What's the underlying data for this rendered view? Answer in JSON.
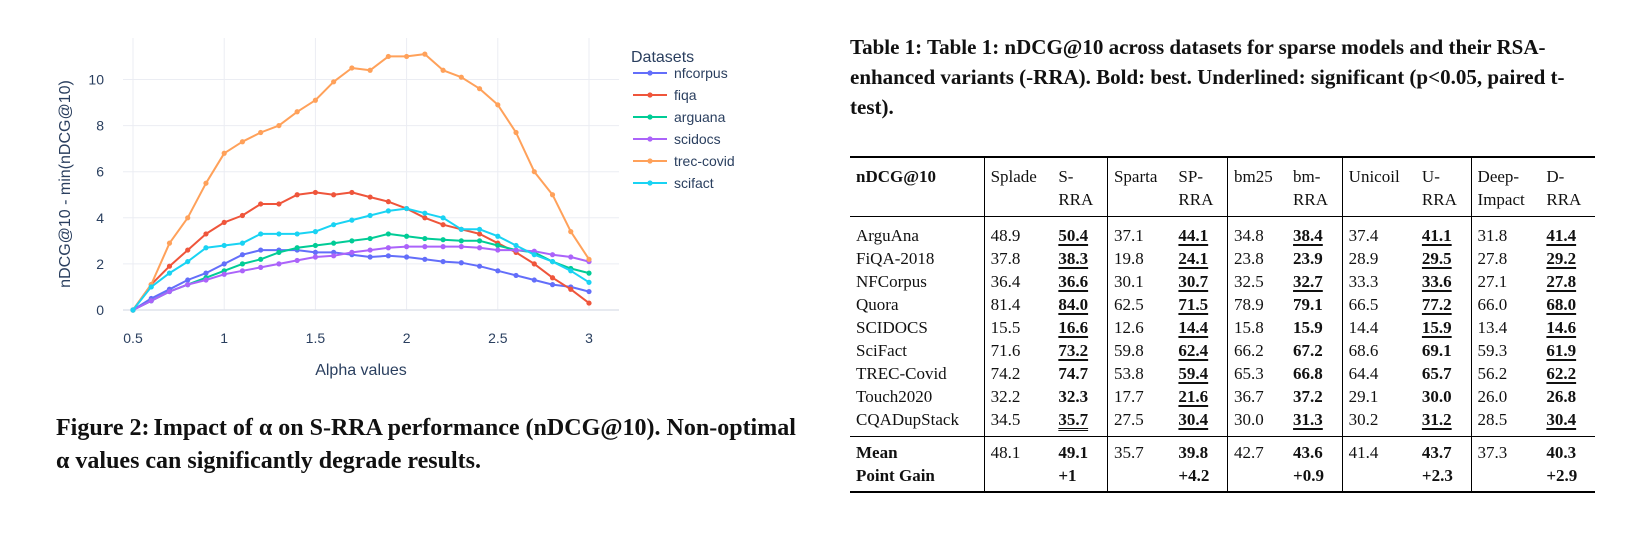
{
  "figure": {
    "caption_label": "Figure 2:",
    "caption_text": "Impact of α on S-RRA performance (nDCG@10). Non-optimal α values can significantly degrade results."
  },
  "chart_data": {
    "type": "line",
    "xlabel": "Alpha values",
    "ylabel": "nDCG@10 - min(nDCG@10)",
    "xlim": [
      0.5,
      3.0
    ],
    "ylim": [
      0,
      11.8
    ],
    "xticks": [
      0.5,
      1,
      1.5,
      2,
      2.5,
      3
    ],
    "xtick_labels": [
      "0.5",
      "1",
      "1.5",
      "2",
      "2.5",
      "3"
    ],
    "yticks": [
      0,
      2,
      4,
      6,
      8,
      10
    ],
    "ytick_labels": [
      "0",
      "2",
      "4",
      "6",
      "8",
      "10"
    ],
    "grid": true,
    "legend_title": "Datasets",
    "legend_position": "top-right, outside plot",
    "x": [
      0.5,
      0.6,
      0.7,
      0.8,
      0.9,
      1.0,
      1.1,
      1.2,
      1.3,
      1.4,
      1.5,
      1.6,
      1.7,
      1.8,
      1.9,
      2.0,
      2.1,
      2.2,
      2.3,
      2.4,
      2.5,
      2.6,
      2.7,
      2.8,
      2.9,
      3.0
    ],
    "series": [
      {
        "name": "nfcorpus",
        "color": "#636efa",
        "values": [
          0,
          0.5,
          0.9,
          1.3,
          1.6,
          2.0,
          2.4,
          2.6,
          2.6,
          2.6,
          2.5,
          2.5,
          2.4,
          2.3,
          2.35,
          2.3,
          2.2,
          2.1,
          2.05,
          1.9,
          1.7,
          1.5,
          1.3,
          1.1,
          1.0,
          0.8
        ]
      },
      {
        "name": "fiqa",
        "color": "#ef553b",
        "values": [
          0,
          1.1,
          1.9,
          2.6,
          3.3,
          3.8,
          4.1,
          4.6,
          4.6,
          5.0,
          5.1,
          5.0,
          5.1,
          4.9,
          4.7,
          4.4,
          4.0,
          3.7,
          3.5,
          3.3,
          2.9,
          2.5,
          2.0,
          1.4,
          0.9,
          0.3
        ]
      },
      {
        "name": "arguana",
        "color": "#00cc96",
        "values": [
          0,
          0.4,
          0.8,
          1.1,
          1.4,
          1.7,
          2.0,
          2.2,
          2.5,
          2.7,
          2.8,
          2.9,
          3.0,
          3.1,
          3.3,
          3.2,
          3.1,
          3.05,
          3.0,
          3.0,
          2.8,
          2.6,
          2.5,
          2.1,
          1.8,
          1.6
        ]
      },
      {
        "name": "scidocs",
        "color": "#ab63fa",
        "values": [
          0,
          0.4,
          0.8,
          1.1,
          1.3,
          1.55,
          1.7,
          1.85,
          2.0,
          2.15,
          2.3,
          2.35,
          2.5,
          2.6,
          2.7,
          2.75,
          2.75,
          2.75,
          2.75,
          2.7,
          2.6,
          2.6,
          2.55,
          2.4,
          2.3,
          2.1
        ]
      },
      {
        "name": "trec-covid",
        "color": "#ffa15a",
        "values": [
          0,
          1.1,
          2.9,
          4.0,
          5.5,
          6.8,
          7.3,
          7.7,
          8.0,
          8.6,
          9.1,
          9.9,
          10.5,
          10.4,
          11.0,
          11.0,
          11.1,
          10.4,
          10.1,
          9.6,
          8.9,
          7.7,
          6.0,
          5.0,
          3.4,
          2.2
        ]
      },
      {
        "name": "scifact",
        "color": "#19d3f3",
        "values": [
          0,
          1.0,
          1.6,
          2.1,
          2.7,
          2.8,
          2.9,
          3.3,
          3.3,
          3.3,
          3.4,
          3.7,
          3.9,
          4.1,
          4.3,
          4.4,
          4.2,
          4.0,
          3.5,
          3.5,
          3.2,
          2.8,
          2.4,
          2.1,
          1.7,
          1.2
        ]
      }
    ]
  },
  "table": {
    "caption": "Table 1: Table 1: nDCG@10 across datasets for sparse models and their RSA-enhanced variants (-RRA). Bold: best. Underlined: significant (p<0.05, paired t-test).",
    "headers": [
      {
        "l1": "nDCG@10",
        "l2": ""
      },
      {
        "l1": "Splade",
        "l2": ""
      },
      {
        "l1": "S-",
        "l2": "RRA"
      },
      {
        "l1": "Sparta",
        "l2": ""
      },
      {
        "l1": "SP-",
        "l2": "RRA"
      },
      {
        "l1": "bm25",
        "l2": ""
      },
      {
        "l1": "bm-",
        "l2": "RRA"
      },
      {
        "l1": "Unicoil",
        "l2": ""
      },
      {
        "l1": "U-",
        "l2": "RRA"
      },
      {
        "l1": "Deep-",
        "l2": "Impact"
      },
      {
        "l1": "D-",
        "l2": "RRA"
      }
    ],
    "rows": [
      {
        "name": "ArguAna",
        "values": [
          "48.9",
          "50.4",
          "37.1",
          "44.1",
          "34.8",
          "38.4",
          "37.4",
          "41.1",
          "31.8",
          "41.4"
        ],
        "styles": [
          "",
          "bu",
          "",
          "bu",
          "",
          "bu",
          "",
          "bu",
          "",
          "bu"
        ]
      },
      {
        "name": "FiQA-2018",
        "values": [
          "37.8",
          "38.3",
          "19.8",
          "24.1",
          "23.8",
          "23.9",
          "28.9",
          "29.5",
          "27.8",
          "29.2"
        ],
        "styles": [
          "",
          "bu",
          "",
          "bu",
          "",
          "b",
          "",
          "bu",
          "",
          "bu"
        ]
      },
      {
        "name": "NFCorpus",
        "values": [
          "36.4",
          "36.6",
          "30.1",
          "30.7",
          "32.5",
          "32.7",
          "33.3",
          "33.6",
          "27.1",
          "27.8"
        ],
        "styles": [
          "",
          "bu",
          "",
          "bu",
          "",
          "bu",
          "",
          "bu",
          "",
          "bu"
        ]
      },
      {
        "name": "Quora",
        "values": [
          "81.4",
          "84.0",
          "62.5",
          "71.5",
          "78.9",
          "79.1",
          "66.5",
          "77.2",
          "66.0",
          "68.0"
        ],
        "styles": [
          "",
          "bu",
          "",
          "bu",
          "",
          "b",
          "",
          "bu",
          "",
          "bu"
        ]
      },
      {
        "name": "SCIDOCS",
        "values": [
          "15.5",
          "16.6",
          "12.6",
          "14.4",
          "15.8",
          "15.9",
          "14.4",
          "15.9",
          "13.4",
          "14.6"
        ],
        "styles": [
          "",
          "bu",
          "",
          "bu",
          "",
          "b",
          "",
          "bu",
          "",
          "bu"
        ]
      },
      {
        "name": "SciFact",
        "values": [
          "71.6",
          "73.2",
          "59.8",
          "62.4",
          "66.2",
          "67.2",
          "68.6",
          "69.1",
          "59.3",
          "61.9"
        ],
        "styles": [
          "",
          "bu",
          "",
          "bu",
          "",
          "b",
          "",
          "b",
          "",
          "bu"
        ]
      },
      {
        "name": "TREC-Covid",
        "values": [
          "74.2",
          "74.7",
          "53.8",
          "59.4",
          "65.3",
          "66.8",
          "64.4",
          "65.7",
          "56.2",
          "62.2"
        ],
        "styles": [
          "",
          "b",
          "",
          "bu",
          "",
          "b",
          "",
          "b",
          "",
          "bu"
        ]
      },
      {
        "name": "Touch2020",
        "values": [
          "32.2",
          "32.3",
          "17.7",
          "21.6",
          "36.7",
          "37.2",
          "29.1",
          "30.0",
          "26.0",
          "26.8"
        ],
        "styles": [
          "",
          "b",
          "",
          "bu",
          "",
          "b",
          "",
          "b",
          "",
          "b"
        ]
      },
      {
        "name": "CQADupStack",
        "values": [
          "34.5",
          "35.7",
          "27.5",
          "30.4",
          "30.0",
          "31.3",
          "30.2",
          "31.2",
          "28.5",
          "30.4"
        ],
        "styles": [
          "",
          "bd",
          "",
          "bu",
          "",
          "bu",
          "",
          "bu",
          "",
          "bu"
        ]
      }
    ],
    "summary": [
      {
        "name": "Mean",
        "values": [
          "48.1",
          "49.1",
          "35.7",
          "39.8",
          "42.7",
          "43.6",
          "41.4",
          "43.7",
          "37.3",
          "40.3"
        ],
        "styles": [
          "",
          "b",
          "",
          "b",
          "",
          "b",
          "",
          "b",
          "",
          "b"
        ]
      },
      {
        "name": "Point Gain",
        "values": [
          "",
          "+1",
          "",
          "+4.2",
          "",
          "+0.9",
          "",
          "+2.3",
          "",
          "+2.9"
        ],
        "styles": [
          "",
          "b",
          "",
          "b",
          "",
          "b",
          "",
          "b",
          "",
          "b"
        ]
      }
    ]
  }
}
